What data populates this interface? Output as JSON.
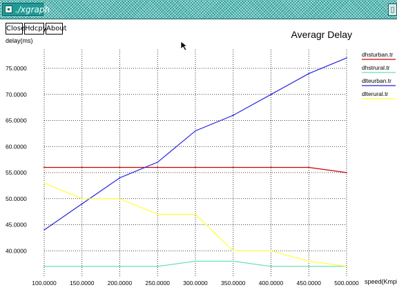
{
  "window": {
    "title": "./xgraph",
    "maximize_glyph": "▯"
  },
  "toolbar": {
    "close_label": "Close",
    "hdcpy_label": "Hdcpy",
    "about_label": "About"
  },
  "chart_data": {
    "type": "line",
    "title": "Averagr Delay",
    "ylabel": "delay(ms)",
    "xlabel": "speed(Kmph)",
    "grid": true,
    "legend_position": "right",
    "xlim": [
      100,
      500
    ],
    "ylim": [
      35,
      78
    ],
    "x_ticks": [
      "100.0000",
      "150.0000",
      "200.0000",
      "250.0000",
      "300.0000",
      "350.0000",
      "400.0000",
      "450.0000",
      "500.0000"
    ],
    "y_ticks": [
      "40.0000",
      "45.0000",
      "50.0000",
      "55.0000",
      "60.0000",
      "65.0000",
      "70.0000",
      "75.0000"
    ],
    "series": [
      {
        "name": "dhsturban.tr",
        "color": "#cc0000",
        "x": [
          100,
          150,
          200,
          250,
          300,
          350,
          400,
          450,
          500
        ],
        "y": [
          56,
          56,
          56,
          56,
          56,
          56,
          56,
          56,
          55
        ]
      },
      {
        "name": "dhstrural.tr",
        "color": "#66e0b8",
        "x": [
          100,
          150,
          200,
          250,
          300,
          350,
          400,
          450,
          500
        ],
        "y": [
          37,
          37,
          37,
          37,
          38,
          38,
          37,
          37,
          37
        ]
      },
      {
        "name": "dlteurban.tr",
        "color": "#2222dd",
        "x": [
          100,
          150,
          200,
          250,
          300,
          350,
          400,
          450,
          500
        ],
        "y": [
          44,
          49,
          54,
          57,
          63,
          66,
          70,
          74,
          77
        ]
      },
      {
        "name": "dlterural.tr",
        "color": "#ffff33",
        "x": [
          100,
          150,
          200,
          250,
          300,
          350,
          400,
          450,
          500
        ],
        "y": [
          53,
          50,
          50,
          47,
          47,
          40,
          40,
          38,
          37
        ]
      }
    ]
  }
}
